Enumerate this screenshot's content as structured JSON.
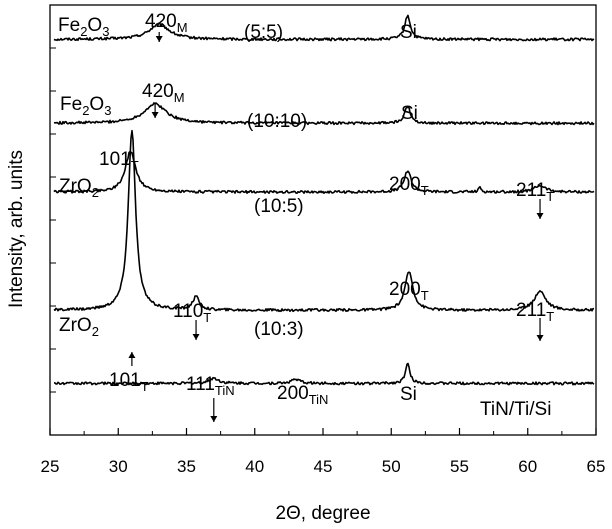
{
  "chart_data": {
    "type": "line",
    "xlabel": "2Θ, degree",
    "ylabel": "Intensity, arb. units",
    "xlim": [
      25,
      65
    ],
    "xticks": [
      "25",
      "30",
      "35",
      "40",
      "45",
      "50",
      "55",
      "60",
      "65"
    ],
    "grid": false,
    "series": [
      {
        "name": "(5:5)",
        "baseline": 0.92,
        "peaks": [
          {
            "x": 33.0,
            "h": 0.035,
            "w": 0.9
          },
          {
            "x": 51.2,
            "h": 0.055,
            "w": 0.25
          }
        ]
      },
      {
        "name": "(10:10)",
        "baseline": 0.725,
        "peaks": [
          {
            "x": 32.7,
            "h": 0.045,
            "w": 1.0
          },
          {
            "x": 51.2,
            "h": 0.04,
            "w": 0.25
          }
        ]
      },
      {
        "name": "(10:5)",
        "baseline": 0.565,
        "peaks": [
          {
            "x": 30.9,
            "h": 0.095,
            "w": 0.45
          },
          {
            "x": 51.2,
            "h": 0.05,
            "w": 0.3
          },
          {
            "x": 56.5,
            "h": 0.012,
            "w": 0.1
          },
          {
            "x": 60.9,
            "h": 0.015,
            "w": 0.5
          }
        ]
      },
      {
        "name": "(10:3)",
        "baseline": 0.29,
        "peaks": [
          {
            "x": 31.0,
            "h": 0.42,
            "w": 0.32
          },
          {
            "x": 35.7,
            "h": 0.03,
            "w": 0.3
          },
          {
            "x": 51.3,
            "h": 0.09,
            "w": 0.35
          },
          {
            "x": 60.9,
            "h": 0.045,
            "w": 0.5
          }
        ]
      },
      {
        "name": "TiN/Ti/Si",
        "baseline": 0.12,
        "peaks": [
          {
            "x": 37.0,
            "h": 0.012,
            "w": 0.4
          },
          {
            "x": 43.0,
            "h": 0.01,
            "w": 0.35
          },
          {
            "x": 51.2,
            "h": 0.045,
            "w": 0.2
          }
        ]
      }
    ],
    "annotations": {
      "fe1": "Fe",
      "fe1_sub2": "2",
      "fe1_o": "O",
      "fe1_sub3": "3",
      "fe1_peak": "420",
      "fe1_peak_sub": "M",
      "fe1_ratio": "(5:5)",
      "fe1_si": "Si",
      "fe2": "Fe",
      "fe2_sub2": "2",
      "fe2_o": "O",
      "fe2_sub3": "3",
      "fe2_peak": "420",
      "fe2_peak_sub": "M",
      "fe2_ratio": "(10:10)",
      "fe2_si": "Si",
      "zr1": "ZrO",
      "zr1_sub": "2",
      "zr1_peak101": "101",
      "zr1_peak101_sub": "T",
      "zr1_ratio": "(10:5)",
      "zr1_peak200": "200",
      "zr1_peak200_sub": "T",
      "zr1_peak211": "211",
      "zr1_peak211_sub": "T",
      "zr2": "ZrO",
      "zr2_sub": "2",
      "zr2_peak110": "110",
      "zr2_peak110_sub": "T",
      "zr2_ratio": "(10:3)",
      "zr2_peak200": "200",
      "zr2_peak200_sub": "T",
      "zr2_peak211": "211",
      "zr2_peak211_sub": "T",
      "zr2_peak101": "101",
      "zr2_peak101_sub": "T",
      "tin_peak111": "111",
      "tin_peak111_sub": "TiN",
      "tin_peak200": "200",
      "tin_peak200_sub": "TiN",
      "tin_si": "Si",
      "tin_name": "TiN/Ti/Si"
    }
  }
}
